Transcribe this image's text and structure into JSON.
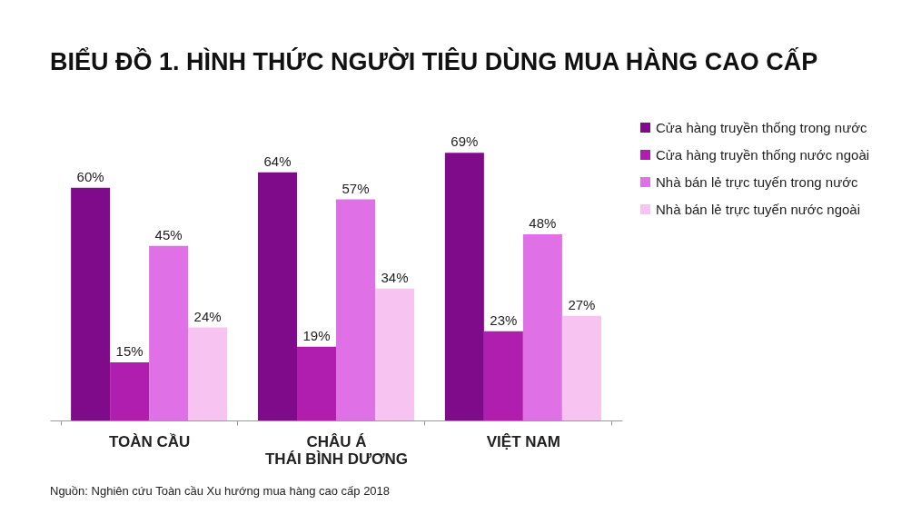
{
  "chart_data": {
    "type": "bar",
    "title": "BIỂU ĐỒ 1. HÌNH THỨC NGƯỜI TIÊU DÙNG MUA HÀNG CAO CẤP",
    "categories": [
      "TOÀN CẦU",
      "CHÂU Á\nTHÁI BÌNH DƯƠNG",
      "VIỆT NAM"
    ],
    "series": [
      {
        "name": "Cửa hàng truyền thống trong nước",
        "color": "#800b8a",
        "values": [
          60,
          64,
          69
        ],
        "value_labels": [
          "60%",
          "64%",
          "69%"
        ]
      },
      {
        "name": "Cửa hàng truyền thống nước ngoài",
        "color": "#b01eb0",
        "values": [
          15,
          19,
          23
        ],
        "value_labels": [
          "15%",
          "19%",
          "23%"
        ]
      },
      {
        "name": "Nhà bán lẻ trực tuyến trong nước",
        "color": "#e070e6",
        "values": [
          45,
          57,
          48
        ],
        "value_labels": [
          "45%",
          "57%",
          "48%"
        ]
      },
      {
        "name": "Nhà bán lẻ trực tuyến nước ngoài",
        "color": "#f7c3f0",
        "values": [
          24,
          34,
          27
        ],
        "value_labels": [
          "24%",
          "34%",
          "27%"
        ]
      }
    ],
    "legend": "right",
    "annotations": [
      "Nguồn: Nghiên cứu Toàn cầu Xu hướng mua hàng cao cấp 2018"
    ]
  }
}
